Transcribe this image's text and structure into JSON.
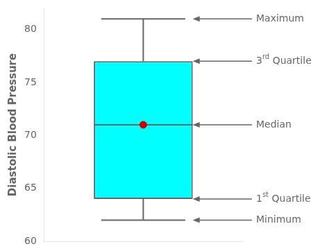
{
  "chart_data": {
    "type": "box",
    "ylabel": "Diastolic Blood Pressure",
    "ylim": [
      60,
      82
    ],
    "yticks": [
      60,
      65,
      70,
      75,
      80
    ],
    "grid": false,
    "tick_labels": "y",
    "series": [
      {
        "type": "box",
        "color": "#00FFFF",
        "whisker_min": 62,
        "q1": 64,
        "median": 71,
        "q3": 77,
        "whisker_max": 81
      },
      {
        "type": "scatter",
        "color": "#CC0000",
        "marker": "circle",
        "values": [
          71
        ]
      }
    ],
    "annotations": [
      {
        "text": "Maximum",
        "y": 81
      },
      {
        "text": "3rd Quartile",
        "y": 77
      },
      {
        "text": "Median",
        "y": 71
      },
      {
        "text": "1st Quartile",
        "y": 64
      },
      {
        "text": "Minimum",
        "y": 62
      }
    ]
  }
}
